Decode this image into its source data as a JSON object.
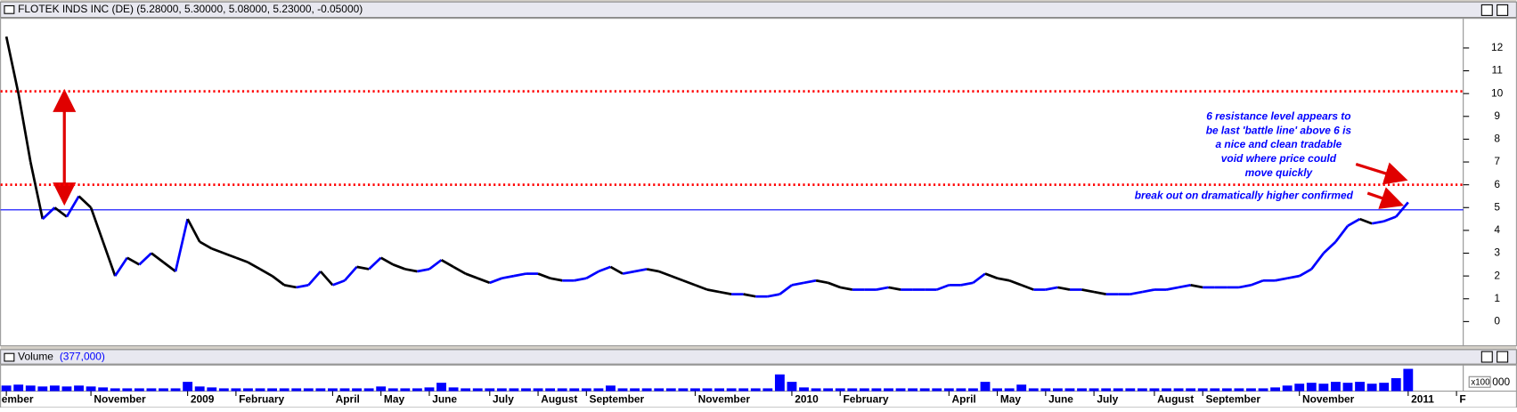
{
  "chart_data": {
    "type": "price-volume",
    "title": "FLOTEK INDS INC (DE) (5.28000, 5.30000, 5.08000, 5.23000, -0.05000)",
    "categories": [
      "ember",
      null,
      null,
      null,
      null,
      null,
      null,
      "November",
      null,
      null,
      null,
      null,
      null,
      null,
      null,
      "2009",
      null,
      null,
      null,
      "February",
      null,
      null,
      null,
      null,
      null,
      null,
      null,
      "April",
      null,
      null,
      null,
      "May",
      null,
      null,
      null,
      "June",
      null,
      null,
      null,
      null,
      "July",
      null,
      null,
      null,
      "August",
      null,
      null,
      null,
      "September",
      null,
      null,
      null,
      null,
      null,
      null,
      null,
      null,
      "November",
      null,
      null,
      null,
      null,
      null,
      null,
      null,
      "2010",
      null,
      null,
      null,
      "February",
      null,
      null,
      null,
      null,
      null,
      null,
      null,
      null,
      "April",
      null,
      null,
      null,
      "May",
      null,
      null,
      null,
      "June",
      null,
      null,
      null,
      "July",
      null,
      null,
      null,
      null,
      "August",
      null,
      null,
      null,
      "September",
      null,
      null,
      null,
      null,
      null,
      null,
      null,
      "November",
      null,
      null,
      null,
      null,
      null,
      null,
      null,
      null,
      "2011",
      null,
      null,
      null,
      "F"
    ],
    "series": [
      {
        "name": "Price",
        "color": "#0000ff",
        "down_color": "#000000",
        "values": [
          12.5,
          10,
          7,
          4.5,
          5,
          4.6,
          5.5,
          5,
          3.5,
          2,
          2.8,
          2.5,
          3,
          2.6,
          2.2,
          4.5,
          3.5,
          3.2,
          3,
          2.8,
          2.6,
          2.3,
          2,
          1.6,
          1.5,
          1.6,
          2.2,
          1.6,
          1.8,
          2.4,
          2.3,
          2.8,
          2.5,
          2.3,
          2.2,
          2.3,
          2.7,
          2.4,
          2.1,
          1.9,
          1.7,
          1.9,
          2,
          2.1,
          2.1,
          1.9,
          1.8,
          1.8,
          1.9,
          2.2,
          2.4,
          2.1,
          2.2,
          2.3,
          2.2,
          2,
          1.8,
          1.6,
          1.4,
          1.3,
          1.2,
          1.2,
          1.1,
          1.1,
          1.2,
          1.6,
          1.7,
          1.8,
          1.7,
          1.5,
          1.4,
          1.4,
          1.4,
          1.5,
          1.4,
          1.4,
          1.4,
          1.4,
          1.6,
          1.6,
          1.7,
          2.1,
          1.9,
          1.8,
          1.6,
          1.4,
          1.4,
          1.5,
          1.4,
          1.4,
          1.3,
          1.2,
          1.2,
          1.2,
          1.3,
          1.4,
          1.4,
          1.5,
          1.6,
          1.5,
          1.5,
          1.5,
          1.5,
          1.6,
          1.8,
          1.8,
          1.9,
          2,
          2.3,
          3,
          3.5,
          4.2,
          4.5,
          4.3,
          4.4,
          4.6,
          5.23,
          null,
          null,
          null,
          null
        ]
      },
      {
        "name": "Volume",
        "color": "#0000ff",
        "axis": "y2",
        "label_value": "(377,000)",
        "values": [
          300000,
          350000,
          300000,
          250000,
          300000,
          250000,
          300000,
          250000,
          200000,
          150000,
          150000,
          150000,
          150000,
          150000,
          150000,
          500000,
          250000,
          200000,
          150000,
          150000,
          150000,
          150000,
          150000,
          150000,
          150000,
          150000,
          150000,
          150000,
          150000,
          150000,
          150000,
          250000,
          150000,
          150000,
          150000,
          200000,
          450000,
          200000,
          150000,
          150000,
          150000,
          150000,
          150000,
          150000,
          150000,
          150000,
          150000,
          150000,
          150000,
          150000,
          300000,
          150000,
          150000,
          150000,
          150000,
          150000,
          150000,
          150000,
          150000,
          150000,
          150000,
          150000,
          150000,
          150000,
          900000,
          500000,
          200000,
          150000,
          150000,
          150000,
          150000,
          150000,
          150000,
          150000,
          150000,
          150000,
          150000,
          150000,
          150000,
          150000,
          150000,
          500000,
          150000,
          150000,
          350000,
          150000,
          150000,
          150000,
          150000,
          150000,
          150000,
          150000,
          150000,
          150000,
          150000,
          150000,
          150000,
          150000,
          150000,
          150000,
          150000,
          150000,
          150000,
          150000,
          150000,
          200000,
          300000,
          400000,
          450000,
          400000,
          500000,
          450000,
          500000,
          400000,
          450000,
          700000,
          1200000,
          null,
          null,
          null,
          null
        ]
      }
    ],
    "ylim": [
      -1.06,
      13.3
    ],
    "yticks": [
      0,
      1,
      2,
      3,
      4,
      5,
      6,
      7,
      8,
      9,
      10,
      11,
      12
    ],
    "y2lim": [
      0,
      1300000
    ],
    "y2_scale_label": "x100",
    "y2_tick_label": "000",
    "reference_lines": [
      {
        "value": 10.1,
        "color": "#ff0000",
        "style": "dotted"
      },
      {
        "value": 6,
        "color": "#ff0000",
        "style": "dotted"
      },
      {
        "value": 4.9,
        "color": "#0000ff",
        "style": "solid"
      }
    ],
    "annotations": [
      [
        "6 resistance level appears to",
        "be last 'battle line' above 6 is",
        "a nice and clean tradable",
        "void where price could",
        "move quickly"
      ],
      "break out on dramatically higher confirmed"
    ]
  }
}
